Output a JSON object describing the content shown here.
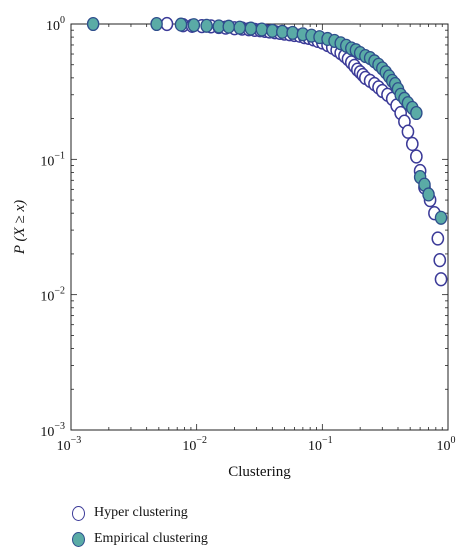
{
  "chart_data": {
    "type": "scatter",
    "xlabel": "Clustering",
    "ylabel": "P (X ≥ x)",
    "xscale": "log",
    "yscale": "log",
    "xlim": [
      0.001,
      1
    ],
    "ylim": [
      0.001,
      1
    ],
    "x_ticks": [
      {
        "base": "10",
        "exp": "−3"
      },
      {
        "base": "10",
        "exp": "−2"
      },
      {
        "base": "10",
        "exp": "−1"
      },
      {
        "base": "10",
        "exp": "0"
      }
    ],
    "y_ticks": [
      {
        "base": "10",
        "exp": "−3"
      },
      {
        "base": "10",
        "exp": "−2"
      },
      {
        "base": "10",
        "exp": "−1"
      },
      {
        "base": "10",
        "exp": "0"
      }
    ],
    "grid": false,
    "legend_position": "bottom-left, below plot",
    "series": [
      {
        "name": "Hyper clustering",
        "marker": "open-circle",
        "edge_color": "#3b3a98",
        "face_color": "#ffffff",
        "points": [
          [
            0.0058,
            1.0
          ],
          [
            0.0078,
            0.98
          ],
          [
            0.0092,
            0.97
          ],
          [
            0.011,
            0.965
          ],
          [
            0.013,
            0.96
          ],
          [
            0.015,
            0.95
          ],
          [
            0.017,
            0.94
          ],
          [
            0.02,
            0.93
          ],
          [
            0.023,
            0.925
          ],
          [
            0.026,
            0.915
          ],
          [
            0.029,
            0.905
          ],
          [
            0.032,
            0.9
          ],
          [
            0.035,
            0.89
          ],
          [
            0.038,
            0.88
          ],
          [
            0.042,
            0.87
          ],
          [
            0.046,
            0.86
          ],
          [
            0.05,
            0.85
          ],
          [
            0.055,
            0.84
          ],
          [
            0.06,
            0.83
          ],
          [
            0.066,
            0.82
          ],
          [
            0.072,
            0.8
          ],
          [
            0.078,
            0.79
          ],
          [
            0.085,
            0.77
          ],
          [
            0.092,
            0.75
          ],
          [
            0.1,
            0.73
          ],
          [
            0.11,
            0.7
          ],
          [
            0.12,
            0.67
          ],
          [
            0.13,
            0.64
          ],
          [
            0.14,
            0.61
          ],
          [
            0.15,
            0.58
          ],
          [
            0.16,
            0.55
          ],
          [
            0.17,
            0.52
          ],
          [
            0.18,
            0.49
          ],
          [
            0.19,
            0.46
          ],
          [
            0.2,
            0.44
          ],
          [
            0.21,
            0.42
          ],
          [
            0.22,
            0.4
          ],
          [
            0.24,
            0.38
          ],
          [
            0.26,
            0.36
          ],
          [
            0.28,
            0.34
          ],
          [
            0.3,
            0.32
          ],
          [
            0.33,
            0.3
          ],
          [
            0.36,
            0.28
          ],
          [
            0.39,
            0.25
          ],
          [
            0.42,
            0.22
          ],
          [
            0.45,
            0.19
          ],
          [
            0.48,
            0.16
          ],
          [
            0.52,
            0.13
          ],
          [
            0.56,
            0.105
          ],
          [
            0.6,
            0.082
          ],
          [
            0.65,
            0.062
          ],
          [
            0.72,
            0.05
          ],
          [
            0.78,
            0.04
          ],
          [
            0.83,
            0.026
          ],
          [
            0.86,
            0.018
          ],
          [
            0.88,
            0.013
          ]
        ]
      },
      {
        "name": "Empirical clustering",
        "marker": "filled-circle",
        "edge_color": "#2e4e8c",
        "face_color": "#5aaba6",
        "points": [
          [
            0.0015,
            1.0
          ],
          [
            0.0048,
            1.0
          ],
          [
            0.0075,
            0.99
          ],
          [
            0.0095,
            0.98
          ],
          [
            0.012,
            0.97
          ],
          [
            0.015,
            0.96
          ],
          [
            0.018,
            0.955
          ],
          [
            0.022,
            0.94
          ],
          [
            0.027,
            0.925
          ],
          [
            0.033,
            0.91
          ],
          [
            0.04,
            0.89
          ],
          [
            0.048,
            0.875
          ],
          [
            0.058,
            0.86
          ],
          [
            0.07,
            0.84
          ],
          [
            0.082,
            0.82
          ],
          [
            0.095,
            0.8
          ],
          [
            0.11,
            0.775
          ],
          [
            0.125,
            0.75
          ],
          [
            0.14,
            0.72
          ],
          [
            0.155,
            0.69
          ],
          [
            0.17,
            0.66
          ],
          [
            0.185,
            0.64
          ],
          [
            0.2,
            0.61
          ],
          [
            0.22,
            0.58
          ],
          [
            0.24,
            0.56
          ],
          [
            0.26,
            0.53
          ],
          [
            0.28,
            0.5
          ],
          [
            0.3,
            0.47
          ],
          [
            0.32,
            0.44
          ],
          [
            0.34,
            0.41
          ],
          [
            0.36,
            0.38
          ],
          [
            0.38,
            0.36
          ],
          [
            0.4,
            0.33
          ],
          [
            0.42,
            0.3
          ],
          [
            0.45,
            0.28
          ],
          [
            0.48,
            0.26
          ],
          [
            0.52,
            0.24
          ],
          [
            0.56,
            0.22
          ],
          [
            0.6,
            0.074
          ],
          [
            0.65,
            0.065
          ],
          [
            0.7,
            0.055
          ],
          [
            0.88,
            0.037
          ]
        ]
      }
    ]
  }
}
